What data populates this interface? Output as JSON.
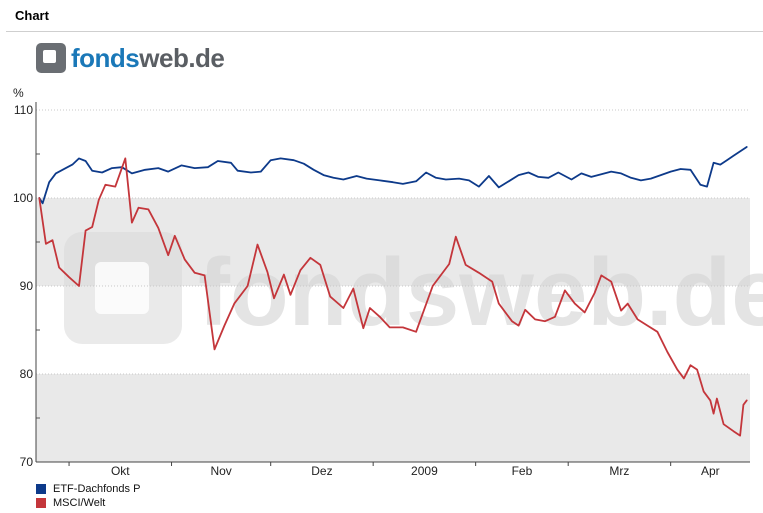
{
  "panel": {
    "title": "Chart"
  },
  "logo": {
    "text_a": "fonds",
    "text_b": "web.de",
    "watermark": "fondsweb.de"
  },
  "chart_data": {
    "type": "line",
    "y_unit": "%",
    "ylim": [
      70,
      110
    ],
    "y_ticks": [
      70,
      80,
      90,
      100,
      110
    ],
    "x_range": [
      "2008-09-21",
      "2009-04-25"
    ],
    "x_ticks": [
      {
        "label": "Okt",
        "date": "2008-10-01"
      },
      {
        "label": "Nov",
        "date": "2008-11-01"
      },
      {
        "label": "Dez",
        "date": "2008-12-01"
      },
      {
        "label": "2009",
        "date": "2009-01-01"
      },
      {
        "label": "Feb",
        "date": "2009-02-01"
      },
      {
        "label": "Mrz",
        "date": "2009-03-01"
      },
      {
        "label": "Apr",
        "date": "2009-04-01"
      }
    ],
    "bands": [
      [
        70,
        80
      ],
      [
        90,
        100
      ]
    ],
    "grid": true,
    "legend_position": "bottom-left",
    "series": [
      {
        "name": "ETF-Dachfonds P",
        "color": "#0d3a8a",
        "points": [
          [
            "2008-09-22",
            100.0
          ],
          [
            "2008-09-23",
            99.4
          ],
          [
            "2008-09-25",
            101.8
          ],
          [
            "2008-09-27",
            102.8
          ],
          [
            "2008-09-30",
            103.4
          ],
          [
            "2008-10-02",
            103.8
          ],
          [
            "2008-10-04",
            104.5
          ],
          [
            "2008-10-06",
            104.2
          ],
          [
            "2008-10-08",
            103.1
          ],
          [
            "2008-10-11",
            102.9
          ],
          [
            "2008-10-14",
            103.4
          ],
          [
            "2008-10-17",
            103.5
          ],
          [
            "2008-10-20",
            102.8
          ],
          [
            "2008-10-24",
            103.2
          ],
          [
            "2008-10-28",
            103.4
          ],
          [
            "2008-10-31",
            103.0
          ],
          [
            "2008-11-04",
            103.7
          ],
          [
            "2008-11-08",
            103.4
          ],
          [
            "2008-11-12",
            103.5
          ],
          [
            "2008-11-15",
            104.2
          ],
          [
            "2008-11-19",
            104.0
          ],
          [
            "2008-11-21",
            103.1
          ],
          [
            "2008-11-25",
            102.9
          ],
          [
            "2008-11-28",
            103.0
          ],
          [
            "2008-12-01",
            104.3
          ],
          [
            "2008-12-04",
            104.5
          ],
          [
            "2008-12-08",
            104.3
          ],
          [
            "2008-12-11",
            103.9
          ],
          [
            "2008-12-14",
            103.2
          ],
          [
            "2008-12-17",
            102.6
          ],
          [
            "2008-12-20",
            102.3
          ],
          [
            "2008-12-23",
            102.1
          ],
          [
            "2008-12-27",
            102.5
          ],
          [
            "2008-12-30",
            102.2
          ],
          [
            "2009-01-03",
            102.0
          ],
          [
            "2009-01-07",
            101.8
          ],
          [
            "2009-01-10",
            101.6
          ],
          [
            "2009-01-14",
            101.9
          ],
          [
            "2009-01-17",
            102.9
          ],
          [
            "2009-01-20",
            102.3
          ],
          [
            "2009-01-23",
            102.1
          ],
          [
            "2009-01-27",
            102.2
          ],
          [
            "2009-01-30",
            102.0
          ],
          [
            "2009-02-02",
            101.3
          ],
          [
            "2009-02-05",
            102.5
          ],
          [
            "2009-02-08",
            101.2
          ],
          [
            "2009-02-11",
            101.9
          ],
          [
            "2009-02-14",
            102.6
          ],
          [
            "2009-02-17",
            102.9
          ],
          [
            "2009-02-20",
            102.4
          ],
          [
            "2009-02-23",
            102.3
          ],
          [
            "2009-02-26",
            102.9
          ],
          [
            "2009-03-02",
            102.1
          ],
          [
            "2009-03-05",
            102.8
          ],
          [
            "2009-03-08",
            102.4
          ],
          [
            "2009-03-11",
            102.7
          ],
          [
            "2009-03-14",
            103.0
          ],
          [
            "2009-03-17",
            102.8
          ],
          [
            "2009-03-20",
            102.3
          ],
          [
            "2009-03-23",
            102.0
          ],
          [
            "2009-03-26",
            102.2
          ],
          [
            "2009-03-29",
            102.6
          ],
          [
            "2009-04-01",
            103.0
          ],
          [
            "2009-04-04",
            103.3
          ],
          [
            "2009-04-07",
            103.2
          ],
          [
            "2009-04-10",
            101.5
          ],
          [
            "2009-04-12",
            101.3
          ],
          [
            "2009-04-14",
            104.0
          ],
          [
            "2009-04-16",
            103.8
          ],
          [
            "2009-04-18",
            104.3
          ],
          [
            "2009-04-20",
            104.8
          ],
          [
            "2009-04-22",
            105.3
          ],
          [
            "2009-04-24",
            105.8
          ]
        ]
      },
      {
        "name": "MSCI/Welt",
        "color": "#c4363b",
        "points": [
          [
            "2008-09-22",
            100.0
          ],
          [
            "2008-09-24",
            94.8
          ],
          [
            "2008-09-26",
            95.2
          ],
          [
            "2008-09-28",
            92.1
          ],
          [
            "2008-10-01",
            91.0
          ],
          [
            "2008-10-04",
            90.0
          ],
          [
            "2008-10-06",
            96.3
          ],
          [
            "2008-10-08",
            96.7
          ],
          [
            "2008-10-10",
            99.8
          ],
          [
            "2008-10-12",
            101.5
          ],
          [
            "2008-10-15",
            101.3
          ],
          [
            "2008-10-18",
            104.5
          ],
          [
            "2008-10-20",
            97.2
          ],
          [
            "2008-10-22",
            98.9
          ],
          [
            "2008-10-25",
            98.7
          ],
          [
            "2008-10-28",
            96.6
          ],
          [
            "2008-10-31",
            93.5
          ],
          [
            "2008-11-02",
            95.7
          ],
          [
            "2008-11-05",
            93.0
          ],
          [
            "2008-11-08",
            91.5
          ],
          [
            "2008-11-11",
            91.2
          ],
          [
            "2008-11-14",
            82.8
          ],
          [
            "2008-11-17",
            85.5
          ],
          [
            "2008-11-20",
            88.0
          ],
          [
            "2008-11-24",
            90.0
          ],
          [
            "2008-11-27",
            94.7
          ],
          [
            "2008-11-30",
            91.6
          ],
          [
            "2008-12-02",
            88.6
          ],
          [
            "2008-12-05",
            91.3
          ],
          [
            "2008-12-07",
            89.0
          ],
          [
            "2008-12-10",
            91.8
          ],
          [
            "2008-12-13",
            93.2
          ],
          [
            "2008-12-16",
            92.4
          ],
          [
            "2008-12-19",
            88.8
          ],
          [
            "2008-12-23",
            87.5
          ],
          [
            "2008-12-26",
            89.7
          ],
          [
            "2008-12-29",
            85.2
          ],
          [
            "2008-12-31",
            87.5
          ],
          [
            "2009-01-03",
            86.5
          ],
          [
            "2009-01-06",
            85.3
          ],
          [
            "2009-01-10",
            85.3
          ],
          [
            "2009-01-14",
            84.8
          ],
          [
            "2009-01-19",
            90.0
          ],
          [
            "2009-01-24",
            92.5
          ],
          [
            "2009-01-26",
            95.6
          ],
          [
            "2009-01-29",
            92.4
          ],
          [
            "2009-02-02",
            91.5
          ],
          [
            "2009-02-06",
            90.5
          ],
          [
            "2009-02-08",
            88.0
          ],
          [
            "2009-02-12",
            86.0
          ],
          [
            "2009-02-14",
            85.5
          ],
          [
            "2009-02-16",
            87.3
          ],
          [
            "2009-02-19",
            86.2
          ],
          [
            "2009-02-22",
            86.0
          ],
          [
            "2009-02-25",
            86.5
          ],
          [
            "2009-02-28",
            89.5
          ],
          [
            "2009-03-03",
            88.0
          ],
          [
            "2009-03-06",
            87.0
          ],
          [
            "2009-03-09",
            89.2
          ],
          [
            "2009-03-11",
            91.2
          ],
          [
            "2009-03-14",
            90.5
          ],
          [
            "2009-03-17",
            87.2
          ],
          [
            "2009-03-19",
            88.0
          ],
          [
            "2009-03-22",
            86.2
          ],
          [
            "2009-03-25",
            85.5
          ],
          [
            "2009-03-28",
            84.8
          ],
          [
            "2009-03-31",
            82.5
          ],
          [
            "2009-04-03",
            80.5
          ],
          [
            "2009-04-05",
            79.5
          ],
          [
            "2009-04-07",
            81.0
          ],
          [
            "2009-04-09",
            80.5
          ],
          [
            "2009-04-11",
            78.0
          ],
          [
            "2009-04-13",
            77.0
          ],
          [
            "2009-04-14",
            75.5
          ],
          [
            "2009-04-15",
            77.2
          ],
          [
            "2009-04-17",
            74.3
          ],
          [
            "2009-04-20",
            73.5
          ],
          [
            "2009-04-22",
            73.0
          ],
          [
            "2009-04-23",
            76.5
          ],
          [
            "2009-04-24",
            77.0
          ]
        ]
      }
    ]
  }
}
